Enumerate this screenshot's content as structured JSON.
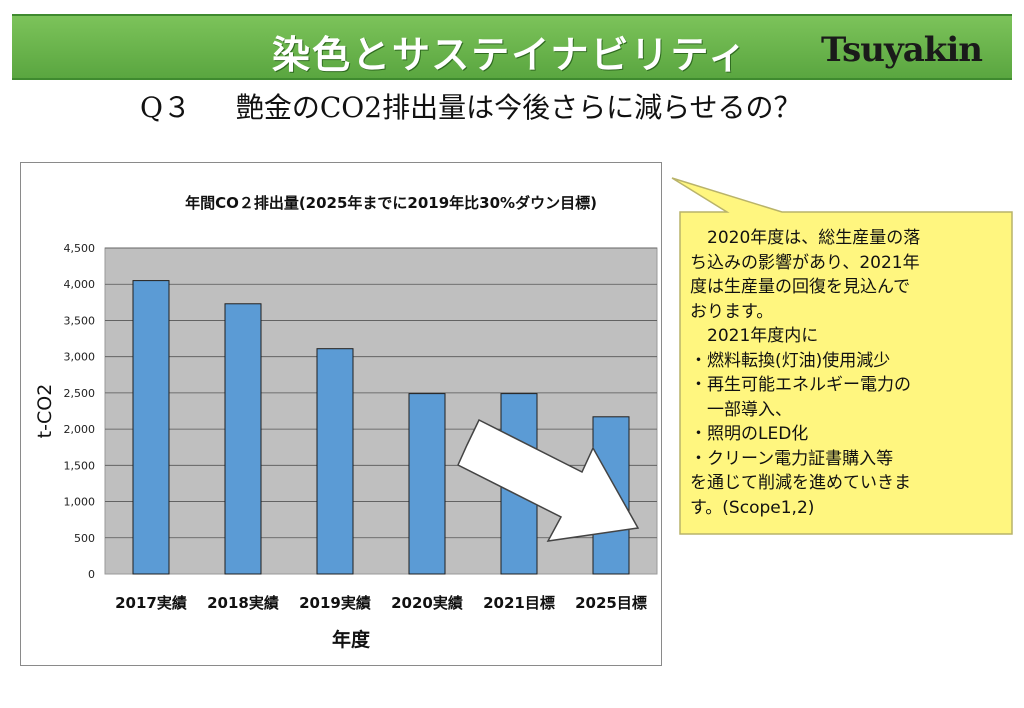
{
  "header": {
    "title": "染色とサステイナビリティ",
    "brand": "Tsuyakin"
  },
  "question": {
    "number": "Q３",
    "text": "艶金のCO2排出量は今後さらに減らせるの？"
  },
  "chart_data": {
    "type": "bar",
    "title": "年間CO２排出量(2025年までに2019年比30%ダウン目標)",
    "xlabel": "年度",
    "ylabel": "t-CO2",
    "categories": [
      "2017実績",
      "2018実績",
      "2019実績",
      "2020実績",
      "2021目標",
      "2025目標"
    ],
    "values": [
      4050,
      3730,
      3110,
      2490,
      2490,
      2170
    ],
    "ylim": [
      0,
      4500
    ],
    "yticks": [
      "0",
      "500",
      "1,000",
      "1,500",
      "2,000",
      "2,500",
      "3,000",
      "3,500",
      "4,000",
      "4,500"
    ],
    "grid": true,
    "bar_color": "#5b9bd5",
    "plot_background": "#bfbfbf",
    "annotation": "downward-trend-arrow"
  },
  "callout": {
    "background": "#fff67f",
    "lines": [
      "　2020年度は、総生産量の落",
      "ち込みの影響があり、2021年",
      "度は生産量の回復を見込んで",
      "おります。",
      "　2021年度内に",
      "・燃料転換(灯油)使用減少",
      "・再生可能エネルギー電力の",
      "　一部導入、",
      "・照明のLED化",
      "・クリーン電力証書購入等",
      "を通じて削減を進めていきま",
      "す。(Scope1,2)"
    ]
  }
}
